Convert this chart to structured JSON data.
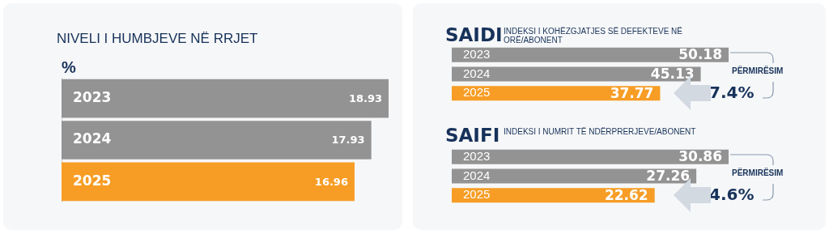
{
  "chart_data": [
    {
      "type": "bar",
      "orientation": "horizontal",
      "title": "NIVELI I HUMBJEVE NË RRJET",
      "ylabel": "%",
      "categories": [
        "2023",
        "2024",
        "2025"
      ],
      "values": [
        18.93,
        17.93,
        16.96
      ],
      "colors": [
        "#939393",
        "#939393",
        "#f79d25"
      ],
      "data_labels": true
    },
    {
      "type": "bar",
      "orientation": "horizontal",
      "title": "SAIDI",
      "subtitle": "INDEKSI I KOHËZGJATJES SË DEFEKTEVE NË ORË/ABONENT",
      "categories": [
        "2023",
        "2024",
        "2025"
      ],
      "values": [
        50.18,
        45.13,
        37.77
      ],
      "colors": [
        "#939393",
        "#939393",
        "#f79d25"
      ],
      "data_labels": true,
      "annotations": [
        "PËRMIRËSIM",
        "7.4%"
      ]
    },
    {
      "type": "bar",
      "orientation": "horizontal",
      "title": "SAIFI",
      "subtitle": "INDEKSI I NUMRIT TË NDËRPRERJEVE/ABONENT",
      "categories": [
        "2023",
        "2024",
        "2025"
      ],
      "values": [
        30.86,
        27.26,
        22.62
      ],
      "colors": [
        "#939393",
        "#939393",
        "#f79d25"
      ],
      "data_labels": true,
      "annotations": [
        "PËRMIRËSIM",
        "4.6%"
      ]
    }
  ]
}
